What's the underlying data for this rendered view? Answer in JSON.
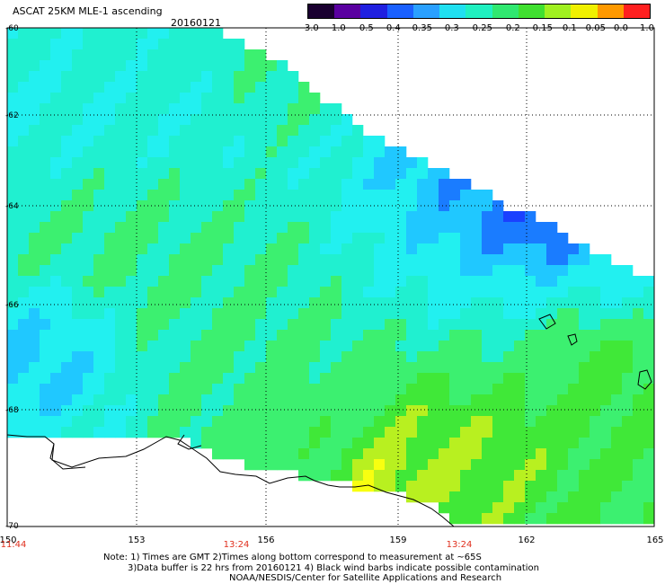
{
  "header": {
    "title": "ASCAT 25KM MLE-1 ascending",
    "date": "20160121"
  },
  "colorbar": {
    "labels": [
      "-3.0",
      "-1.0",
      "-0.5",
      "-0.4",
      "-0.35",
      "-0.3",
      "-0.25",
      "-0.2",
      "-0.15",
      "-0.1",
      "-0.05",
      "0.0",
      "1.0"
    ],
    "colors": [
      "#1a0030",
      "#5a00a0",
      "#2020e0",
      "#1a60ff",
      "#2aa0ff",
      "#20e0f0",
      "#20f0c0",
      "#30e870",
      "#40e030",
      "#a0f020",
      "#f0f000",
      "#ff9900",
      "#ff2020"
    ]
  },
  "map": {
    "lat_labels": [
      "-60",
      "-62",
      "-64",
      "-66",
      "-68",
      "-70"
    ],
    "lon_labels": [
      "150",
      "153",
      "156",
      "159",
      "162",
      "165"
    ],
    "time_labels": [
      "11:44",
      "13:24",
      "13:24"
    ],
    "colors": {
      "background": "#ffffff",
      "coast": "#000000",
      "grid": "#000000",
      "time": "#e0301e"
    }
  },
  "notes": {
    "line1": "Note: 1) Times are GMT 2)Times along bottom correspond to measurement at ~65S",
    "line2": "3)Data buffer is 22 hrs from 20160121 4) Black wind barbs indicate possible contamination",
    "line3": "NOAA/NESDIS/Center for Satellite Applications and Research"
  }
}
